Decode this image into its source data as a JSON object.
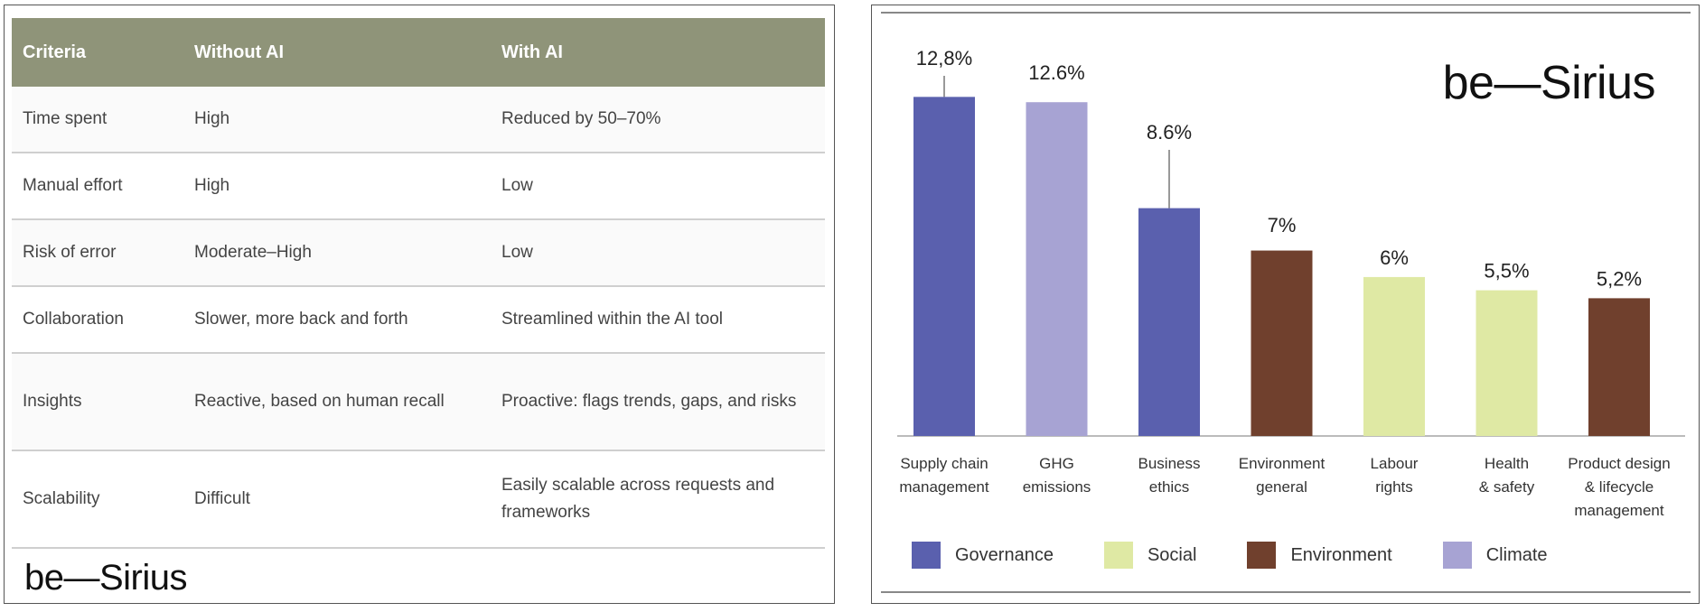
{
  "table": {
    "headers": [
      "Criteria",
      "Without AI",
      "With AI"
    ],
    "rows": [
      [
        "Time spent",
        "High",
        "Reduced by 50–70%"
      ],
      [
        "Manual effort",
        "High",
        "Low"
      ],
      [
        "Risk of error",
        "Moderate–High",
        "Low"
      ],
      [
        "Collaboration",
        "Slower, more back and forth",
        "Streamlined within the AI tool"
      ],
      [
        "Insights",
        "Reactive, based on human recall",
        "Proactive: flags trends, gaps, and risks"
      ],
      [
        "Scalability",
        "Difficult",
        "Easily scalable across requests and frameworks"
      ]
    ],
    "brand": "be—Sirius",
    "header_color": "#8f9479"
  },
  "chart_data": {
    "type": "bar",
    "brand": "be—Sirius",
    "categories": [
      "Supply chain management",
      "GHG emissions",
      "Business ethics",
      "Environment general",
      "Labour rights",
      "Health & safety",
      "Product design & lifecycle management"
    ],
    "category_lines": [
      [
        "Supply chain",
        "management"
      ],
      [
        "GHG",
        "emissions"
      ],
      [
        "Business",
        "ethics"
      ],
      [
        "Environment",
        "general"
      ],
      [
        "Labour",
        "rights"
      ],
      [
        "Health",
        "& safety"
      ],
      [
        "Product design",
        "& lifecycle",
        "management"
      ]
    ],
    "values": [
      12.8,
      12.6,
      8.6,
      7,
      6,
      5.5,
      5.2
    ],
    "value_labels": [
      "12,8%",
      "12.6%",
      "8.6%",
      "7%",
      "6%",
      "5,5%",
      "5,2%"
    ],
    "bar_groups": [
      "Governance",
      "Climate",
      "Governance",
      "Environment",
      "Social",
      "Social",
      "Environment"
    ],
    "ylim": [
      0,
      13.8
    ],
    "grid": false,
    "legend": {
      "placement": "bottom-left",
      "items": [
        {
          "name": "Governance",
          "color": "#5a60ae"
        },
        {
          "name": "Social",
          "color": "#dfe9a4"
        },
        {
          "name": "Environment",
          "color": "#70402d"
        },
        {
          "name": "Climate",
          "color": "#a7a3d3"
        }
      ]
    }
  }
}
